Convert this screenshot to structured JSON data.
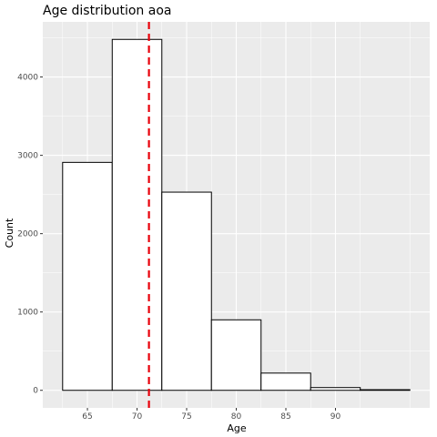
{
  "chart_data": {
    "type": "bar",
    "title": "Age distribution aoa",
    "xlabel": "Age",
    "ylabel": "Count",
    "bins": [
      {
        "start": 62.5,
        "end": 67.5,
        "count": 2910
      },
      {
        "start": 67.5,
        "end": 72.5,
        "count": 4480
      },
      {
        "start": 72.5,
        "end": 77.5,
        "count": 2530
      },
      {
        "start": 77.5,
        "end": 82.5,
        "count": 900
      },
      {
        "start": 82.5,
        "end": 87.5,
        "count": 220
      },
      {
        "start": 87.5,
        "end": 92.5,
        "count": 35
      },
      {
        "start": 92.5,
        "end": 97.5,
        "count": 8
      }
    ],
    "mean_line": {
      "x": 71.2,
      "color": "#e8000b",
      "style": "dashed"
    },
    "xlim": [
      60.5,
      99.5
    ],
    "ylim": [
      -224,
      4704
    ],
    "x_ticks": [
      65,
      70,
      75,
      80,
      85,
      90
    ],
    "y_ticks": [
      0,
      1000,
      2000,
      3000,
      4000
    ],
    "grid": true,
    "colors": {
      "panel_background": "#ebebeb",
      "grid": "#ffffff",
      "bar_fill": "#ffffff",
      "bar_outline": "#000000"
    }
  }
}
